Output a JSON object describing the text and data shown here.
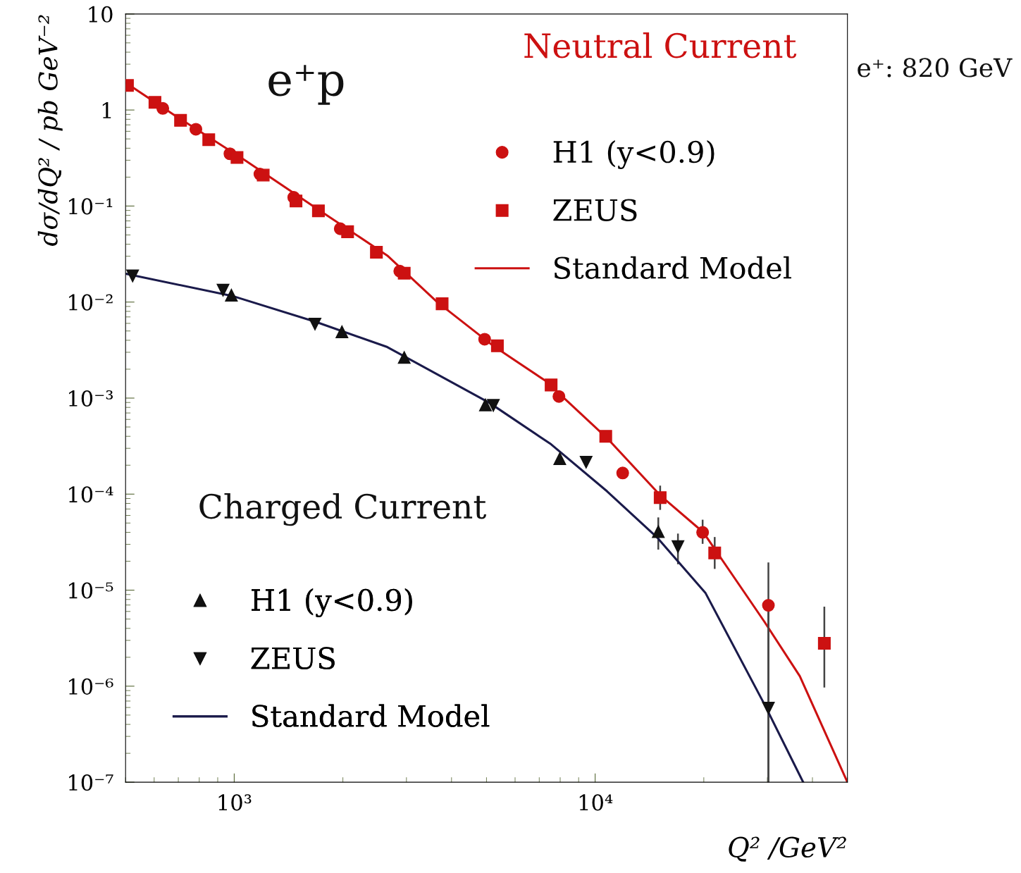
{
  "chart_data": {
    "type": "scatter",
    "xlabel": "Q² /GeV²",
    "ylabel": "dσ/dQ² / pb GeV⁻²",
    "annotations": [
      "e⁺p",
      "Neutral Current",
      "Charged Current",
      "e⁺: 820 GeV"
    ],
    "log": "xy",
    "xlim": [
      500,
      50000
    ],
    "ylim": [
      1e-07,
      10
    ],
    "xticks": [
      {
        "value": 1000,
        "label": "10³"
      },
      {
        "value": 10000,
        "label": "10⁴"
      }
    ],
    "yticks": [
      {
        "value": 10,
        "label": "10"
      },
      {
        "value": 1,
        "label": "1"
      },
      {
        "value": 0.1,
        "label": "10⁻¹"
      },
      {
        "value": 0.01,
        "label": "10⁻²"
      },
      {
        "value": 0.001,
        "label": "10⁻³"
      },
      {
        "value": 0.0001,
        "label": "10⁻⁴"
      },
      {
        "value": 1e-05,
        "label": "10⁻⁵"
      },
      {
        "value": 1e-06,
        "label": "10⁻⁶"
      },
      {
        "value": 1e-07,
        "label": "10⁻⁷"
      }
    ],
    "legend": [
      "top right",
      "bottom left"
    ],
    "grid": false,
    "series": [
      {
        "name": "H1 (y<0.9)",
        "marker": "circle",
        "color": "#cc1111",
        "x": [
          634,
          783,
          973,
          1178,
          1462,
          1967,
          2875,
          4941,
          7937,
          11920,
          19850,
          30200
        ],
        "values": [
          1.04,
          0.63,
          0.35,
          0.215,
          0.123,
          0.058,
          0.021,
          0.0041,
          0.00104,
          0.000166,
          4e-05,
          6.95e-06
        ],
        "errors": [
          null,
          null,
          null,
          null,
          null,
          null,
          null,
          null,
          null,
          null,
          [
            3.1e-05,
            5.3e-05
          ],
          [
            1e-07,
            1.9e-05
          ]
        ]
      },
      {
        "name": "ZEUS",
        "marker": "square",
        "color": "#cc1111",
        "x": [
          506,
          603,
          710,
          850,
          1018,
          1203,
          1483,
          1711,
          2061,
          2477,
          2958,
          3767,
          5360,
          7551,
          10700,
          15140,
          21440,
          43150
        ],
        "values": [
          1.8,
          1.2,
          0.78,
          0.49,
          0.32,
          0.21,
          0.113,
          0.089,
          0.054,
          0.033,
          0.02,
          0.0096,
          0.0035,
          0.00137,
          0.0004,
          9.2e-05,
          2.44e-05,
          2.8e-06
        ],
        "errors": [
          null,
          null,
          null,
          null,
          null,
          null,
          null,
          null,
          null,
          null,
          null,
          null,
          null,
          null,
          null,
          [
            7e-05,
            0.00012
          ],
          [
            1.7e-05,
            3.5e-05
          ],
          [
            9.9e-07,
            6.6e-06
          ]
        ]
      },
      {
        "name": "Standard Model",
        "type": "line",
        "marker": "none",
        "line_style": "solid",
        "color": "#cc1111",
        "x": [
          500,
          684,
          1075,
          1687,
          2655,
          3640,
          5220,
          7290,
          10790,
          15150,
          19940,
          29430,
          36900,
          50000
        ],
        "values": [
          1.93,
          0.88,
          0.297,
          0.095,
          0.0305,
          0.0101,
          0.0035,
          0.00151,
          0.000383,
          9.7e-05,
          4e-05,
          4.7e-06,
          1.27e-06,
          1e-07
        ]
      },
      {
        "name": "H1 (y<0.9)",
        "marker": "triangle",
        "color": "#111111",
        "x": [
          982,
          1988,
          2958,
          4966,
          7980,
          14960
        ],
        "values": [
          0.0118,
          0.0049,
          0.00265,
          0.00085,
          0.000234,
          4.07e-05
        ],
        "errors": [
          null,
          null,
          null,
          null,
          null,
          [
            2.7e-05,
            5.6e-05
          ]
        ]
      },
      {
        "name": "ZEUS",
        "marker": "triangle_down",
        "color": "#111111",
        "x": [
          523,
          931,
          1674,
          5223,
          9440,
          16960,
          30200
        ],
        "values": [
          0.0187,
          0.0133,
          0.0059,
          0.00084,
          0.000215,
          2.84e-05,
          5.9e-07
        ],
        "errors": [
          null,
          null,
          null,
          null,
          null,
          [
            1.9e-05,
            3.8e-05
          ],
          [
            1e-07,
            6e-06
          ]
        ]
      },
      {
        "name": "Standard Model",
        "type": "line",
        "marker": "none",
        "line_style": "solid",
        "color": "#1a1a4a",
        "x": [
          500,
          986,
          1687,
          2655,
          5100,
          7550,
          10790,
          14890,
          20230,
          29430,
          37700
        ],
        "values": [
          0.0197,
          0.0116,
          0.0062,
          0.0034,
          0.00089,
          0.00033,
          0.000107,
          3.5e-05,
          9.3e-06,
          6.5e-07,
          1e-07
        ]
      }
    ]
  }
}
